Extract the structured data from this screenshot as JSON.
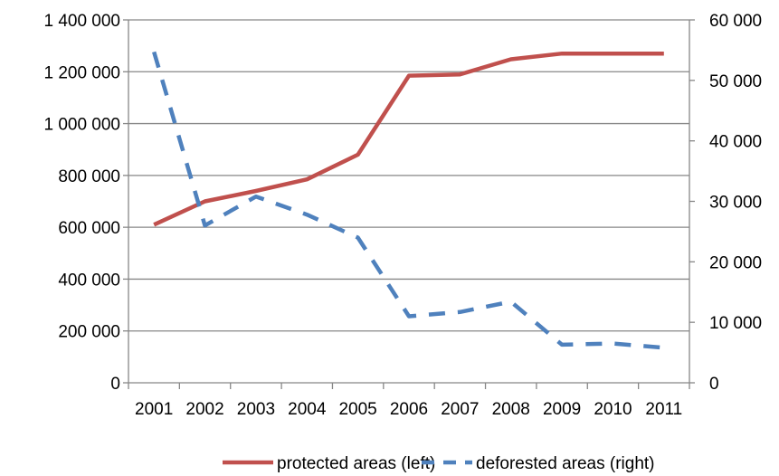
{
  "chart_data": {
    "type": "line",
    "title": "",
    "categories": [
      "2001",
      "2002",
      "2003",
      "2004",
      "2005",
      "2006",
      "2007",
      "2008",
      "2009",
      "2010",
      "2011"
    ],
    "series": [
      {
        "name": "protected areas (left)",
        "axis": "left",
        "style": "solid",
        "color": "#C0504D",
        "values": [
          610000,
          700000,
          740000,
          785000,
          880000,
          1185000,
          1190000,
          1248000,
          1270000,
          1270000,
          1270000
        ]
      },
      {
        "name": "deforested areas (right)",
        "axis": "right",
        "style": "dashed",
        "color": "#4F81BD",
        "values": [
          54700,
          26000,
          30800,
          27800,
          24000,
          11000,
          11700,
          13400,
          6300,
          6500,
          5800
        ]
      }
    ],
    "y_left": {
      "ylim": [
        0,
        1400000
      ],
      "ticks": [
        0,
        200000,
        400000,
        600000,
        800000,
        1000000,
        1200000,
        1400000
      ],
      "tick_labels": [
        "0",
        "200 000",
        "400 000",
        "600 000",
        "800 000",
        "1 000 000",
        "1 200 000",
        "1 400 000"
      ]
    },
    "y_right": {
      "ylim": [
        0,
        60000
      ],
      "ticks": [
        0,
        10000,
        20000,
        30000,
        40000,
        50000,
        60000
      ],
      "tick_labels": [
        "0",
        "10 000",
        "20 000",
        "30 000",
        "40 000",
        "50 000",
        "60 000"
      ]
    },
    "grid": true,
    "legend": "bottom",
    "colors": {
      "gridline": "#878787",
      "axis": "#878787"
    }
  }
}
